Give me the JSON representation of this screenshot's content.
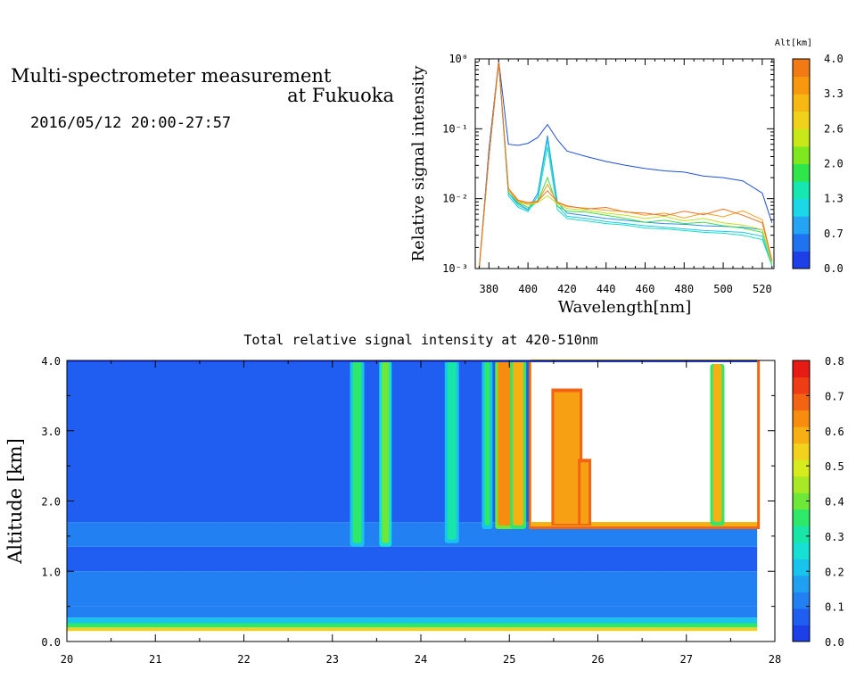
{
  "header": {
    "title_line_1": "Multi-spectrometer measurement",
    "title_line_2": "at Fukuoka",
    "date": "2016/05/12 20:00-27:57"
  },
  "chart_data": [
    {
      "id": "spectrum",
      "type": "line",
      "xlabel": "Wavelength[nm]",
      "ylabel": "Relative signal intensity",
      "y_scale": "log",
      "xlim": [
        373,
        526
      ],
      "ylim": [
        0.001,
        1
      ],
      "x_ticks": [
        380,
        400,
        420,
        440,
        460,
        480,
        500,
        520
      ],
      "y_tick_labels": [
        "10⁻³",
        "10⁻²",
        "10⁻¹",
        "10⁰"
      ],
      "colorbar": {
        "title": "Alt[km]",
        "ticks": [
          "0.0",
          "0.7",
          "1.3",
          "2.0",
          "2.6",
          "3.3",
          "4.0"
        ],
        "colors": [
          "#1d3fe8",
          "#1f73f0",
          "#24a4f2",
          "#1cd7e8",
          "#16e6b0",
          "#2ee64a",
          "#7ee81e",
          "#c8e81a",
          "#f0d21c",
          "#f7b814",
          "#f7980e",
          "#f27a14"
        ]
      },
      "x": [
        375,
        380,
        385,
        390,
        395,
        400,
        405,
        410,
        415,
        420,
        430,
        440,
        450,
        460,
        470,
        480,
        490,
        500,
        510,
        520,
        525
      ],
      "series": [
        {
          "color": "#1f4fd8",
          "values": [
            0.001,
            0.05,
            0.95,
            0.06,
            0.058,
            0.062,
            0.075,
            0.115,
            0.07,
            0.048,
            0.04,
            0.034,
            0.03,
            0.027,
            0.025,
            0.024,
            0.021,
            0.02,
            0.018,
            0.012,
            0.0045
          ]
        },
        {
          "color": "#2a8ff0",
          "values": [
            0.001,
            0.04,
            0.9,
            0.012,
            0.0085,
            0.007,
            0.012,
            0.08,
            0.009,
            0.0062,
            0.0057,
            0.0052,
            0.0049,
            0.0046,
            0.0044,
            0.0043,
            0.0041,
            0.004,
            0.0039,
            0.0036,
            0.0012
          ]
        },
        {
          "color": "#1cc8e8",
          "values": [
            0.001,
            0.04,
            0.9,
            0.011,
            0.0075,
            0.0065,
            0.011,
            0.07,
            0.008,
            0.0056,
            0.0052,
            0.0047,
            0.0044,
            0.0041,
            0.0039,
            0.0037,
            0.0035,
            0.0034,
            0.0033,
            0.0029,
            0.0011
          ]
        },
        {
          "color": "#16e0c0",
          "values": [
            0.001,
            0.04,
            0.9,
            0.012,
            0.008,
            0.0068,
            0.0095,
            0.055,
            0.007,
            0.0052,
            0.0048,
            0.0044,
            0.0042,
            0.0038,
            0.0037,
            0.0035,
            0.0033,
            0.0032,
            0.003,
            0.0026,
            0.0011
          ]
        },
        {
          "color": "#3ee040",
          "values": [
            0.001,
            0.04,
            0.9,
            0.013,
            0.0088,
            0.0075,
            0.009,
            0.02,
            0.0078,
            0.0066,
            0.0064,
            0.0058,
            0.0052,
            0.0046,
            0.0049,
            0.0044,
            0.0046,
            0.0041,
            0.0038,
            0.0033,
            0.0012
          ]
        },
        {
          "color": "#c0e020",
          "values": [
            0.001,
            0.04,
            0.9,
            0.014,
            0.009,
            0.0082,
            0.0088,
            0.011,
            0.0085,
            0.0072,
            0.0068,
            0.0062,
            0.0058,
            0.0052,
            0.0056,
            0.0048,
            0.0052,
            0.0045,
            0.0042,
            0.0036,
            0.0012
          ]
        },
        {
          "color": "#f0a020",
          "values": [
            0.001,
            0.04,
            0.9,
            0.013,
            0.0092,
            0.0085,
            0.009,
            0.016,
            0.0088,
            0.0077,
            0.0073,
            0.0068,
            0.0065,
            0.0058,
            0.0062,
            0.0053,
            0.0062,
            0.0055,
            0.0067,
            0.005,
            0.0013
          ]
        },
        {
          "color": "#f07020",
          "values": [
            0.001,
            0.04,
            0.9,
            0.014,
            0.0095,
            0.0088,
            0.0092,
            0.013,
            0.009,
            0.0079,
            0.0071,
            0.0075,
            0.0064,
            0.0062,
            0.0057,
            0.0066,
            0.0059,
            0.0071,
            0.0058,
            0.0045,
            0.0013
          ]
        }
      ]
    },
    {
      "id": "altitude-time",
      "type": "heatmap",
      "title": "Total relative signal intensity at 420-510nm",
      "ylabel": "Altitude [km]",
      "xlim": [
        20,
        28
      ],
      "ylim": [
        0,
        4
      ],
      "x_ticks": [
        20,
        21,
        22,
        23,
        24,
        25,
        26,
        27,
        28
      ],
      "y_ticks": [
        "0.0",
        "1.0",
        "2.0",
        "3.0",
        "4.0"
      ],
      "data_end_time": 27.8,
      "cloud_base_km": 1.6,
      "colorbar": {
        "ticks": [
          "0.0",
          "0.1",
          "0.2",
          "0.3",
          "0.4",
          "0.5",
          "0.6",
          "0.7",
          "0.8"
        ],
        "colors": [
          "#1d3fe8",
          "#1f5ef0",
          "#2380f2",
          "#1fa0f0",
          "#18c4ec",
          "#16e0d4",
          "#18e6a8",
          "#2ee86a",
          "#6ee838",
          "#a8e824",
          "#d6ec1c",
          "#f2d21c",
          "#f7b014",
          "#f78c0e",
          "#f26414",
          "#ee3c14",
          "#e81a14"
        ]
      },
      "bands": [
        {
          "alt_from": 0.15,
          "alt_to": 0.2,
          "value": 0.55
        },
        {
          "alt_from": 0.2,
          "alt_to": 0.26,
          "value": 0.35
        },
        {
          "alt_from": 0.26,
          "alt_to": 0.34,
          "value": 0.22
        },
        {
          "alt_from": 0.34,
          "alt_to": 0.5,
          "value": 0.12
        },
        {
          "alt_from": 0.5,
          "alt_to": 1.0,
          "value": 0.08
        },
        {
          "alt_from": 1.0,
          "alt_to": 1.35,
          "value": 0.06
        },
        {
          "alt_from": 1.35,
          "alt_to": 1.7,
          "value": 0.09
        },
        {
          "alt_from": 1.7,
          "alt_to": 4.0,
          "value": 0.04
        }
      ],
      "columns": [
        {
          "t": 23.28,
          "width": 0.1,
          "alt_from": 1.35,
          "alt_to": 4.0,
          "value": 0.35
        },
        {
          "t": 23.6,
          "width": 0.08,
          "alt_from": 1.35,
          "alt_to": 4.0,
          "value": 0.4
        },
        {
          "t": 24.35,
          "width": 0.1,
          "alt_from": 1.4,
          "alt_to": 4.0,
          "value": 0.3
        },
        {
          "t": 24.75,
          "width": 0.06,
          "alt_from": 1.6,
          "alt_to": 4.0,
          "value": 0.35
        },
        {
          "t": 24.95,
          "width": 0.16,
          "alt_from": 1.6,
          "alt_to": 4.0,
          "value": 0.65
        },
        {
          "t": 25.1,
          "width": 0.12,
          "alt_from": 1.6,
          "alt_to": 4.0,
          "value": 0.6
        },
        {
          "t": 27.35,
          "width": 0.1,
          "alt_from": 1.65,
          "alt_to": 3.95,
          "value": 0.6
        }
      ],
      "saturated": {
        "t_from": 25.25,
        "t_to": 27.8,
        "alt_from": 1.65,
        "alt_to": 4.0
      },
      "saturated_features": [
        {
          "t": 25.65,
          "width": 0.35,
          "alt_from": 1.65,
          "alt_to": 3.6
        },
        {
          "t": 25.85,
          "width": 0.15,
          "alt_from": 1.65,
          "alt_to": 2.6
        },
        {
          "t": 27.35,
          "width": 0.1,
          "alt_from": 1.65,
          "alt_to": 3.95
        }
      ]
    }
  ]
}
